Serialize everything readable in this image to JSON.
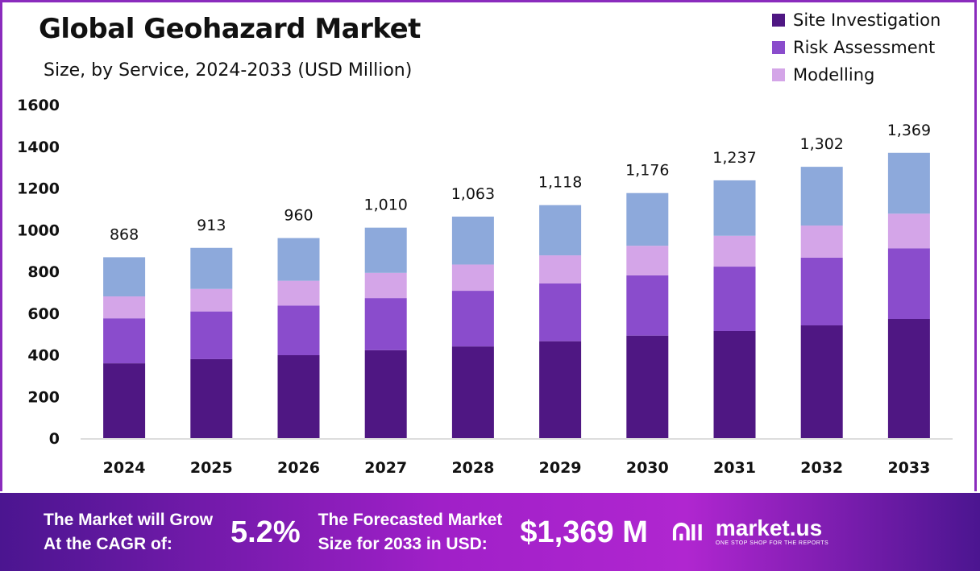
{
  "chart_data": {
    "type": "bar",
    "stacked": true,
    "title": "Global Geohazard Market",
    "subtitle": "Size, by Service, 2024-2033 (USD Million)",
    "categories": [
      "2024",
      "2025",
      "2026",
      "2027",
      "2028",
      "2029",
      "2030",
      "2031",
      "2032",
      "2033"
    ],
    "series": [
      {
        "name": "Site Investigation",
        "color": "#4f1783",
        "values": [
          359,
          379,
          398,
          422,
          440,
          465,
          492,
          514,
          541,
          572
        ]
      },
      {
        "name": "Risk Assessment",
        "color": "#8a4ccc",
        "values": [
          216,
          229,
          238,
          250,
          267,
          277,
          289,
          309,
          325,
          339
        ]
      },
      {
        "name": "Modelling",
        "color": "#d4a5e8",
        "values": [
          105,
          108,
          119,
          121,
          126,
          135,
          142,
          148,
          154,
          166
        ]
      },
      {
        "color": "#8da9db",
        "values": [
          188,
          197,
          205,
          217,
          230,
          241,
          253,
          266,
          282,
          292
        ]
      }
    ],
    "totals": [
      "868",
      "913",
      "960",
      "1,010",
      "1,063",
      "1,118",
      "1,176",
      "1,237",
      "1,302",
      "1,369"
    ],
    "yticks": [
      "0",
      "200",
      "400",
      "600",
      "800",
      "1000",
      "1200",
      "1400",
      "1600"
    ],
    "ylim": [
      0,
      1600
    ],
    "grid": false,
    "legend_position": "top-right"
  },
  "footer": {
    "cagr_label_1": "The Market will Grow",
    "cagr_label_2": "At the CAGR of:",
    "cagr_value": "5.2%",
    "forecast_label_1": "The Forecasted Market",
    "forecast_label_2": "Size for 2033 in USD:",
    "forecast_value": "$1,369 M",
    "logo_name": "market.us",
    "logo_tagline": "ONE STOP SHOP FOR THE REPORTS"
  }
}
